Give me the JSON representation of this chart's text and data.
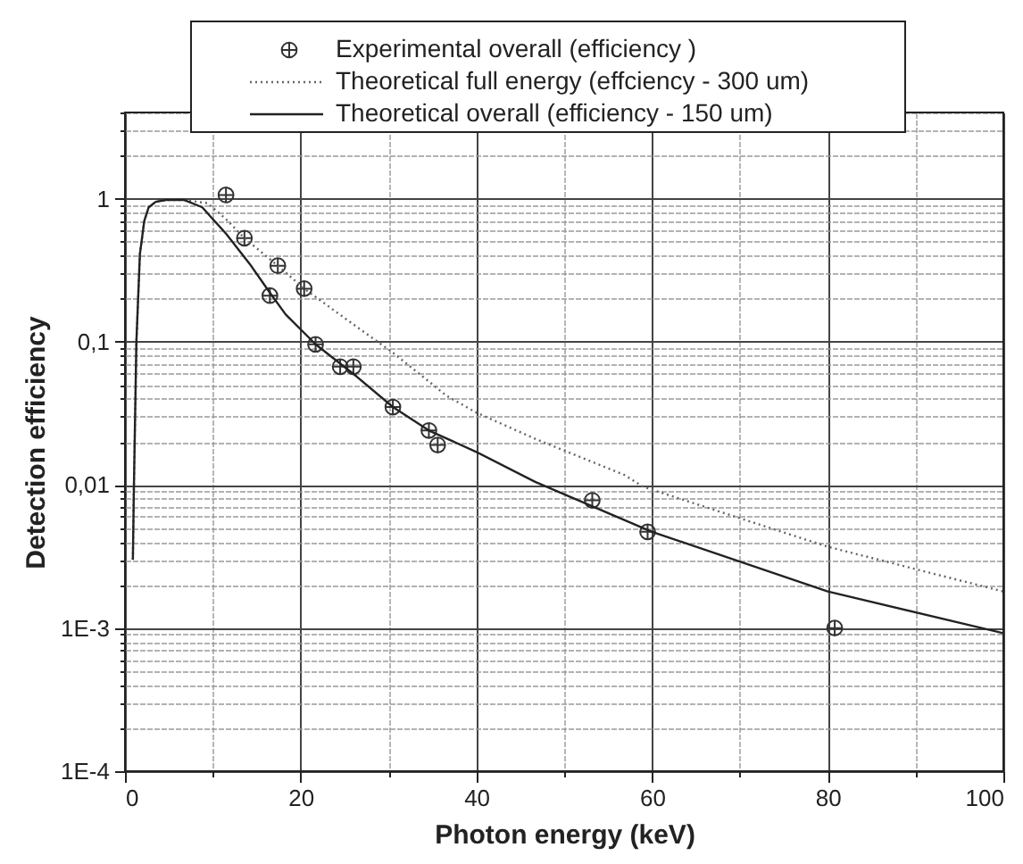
{
  "chart_data": {
    "type": "line",
    "xlabel": "Photon energy (keV)",
    "ylabel": "Detection efficiency",
    "xlim": [
      0,
      100
    ],
    "ylim": [
      0.0001,
      4
    ],
    "log": "y",
    "grid": true,
    "legend": "top",
    "xticks": [
      0,
      {
        "value": 10,
        "label": null
      },
      20,
      {
        "value": 30,
        "label": null
      },
      40,
      {
        "value": 50,
        "label": null
      },
      60,
      {
        "value": 70,
        "label": null
      },
      80,
      {
        "value": 90,
        "label": null
      },
      100
    ],
    "yticks": [
      {
        "value": 0.0001,
        "label": "1E-4"
      },
      {
        "value": 0.0002,
        "label": null
      },
      {
        "value": 0.0003,
        "label": null
      },
      {
        "value": 0.0004,
        "label": null
      },
      {
        "value": 0.0005,
        "label": null
      },
      {
        "value": 0.0006,
        "label": null
      },
      {
        "value": 0.0007,
        "label": null
      },
      {
        "value": 0.0008,
        "label": null
      },
      {
        "value": 0.0009,
        "label": null
      },
      {
        "value": 0.001,
        "label": "1E-3"
      },
      {
        "value": 0.002,
        "label": null
      },
      {
        "value": 0.003,
        "label": null
      },
      {
        "value": 0.004,
        "label": null
      },
      {
        "value": 0.005,
        "label": null
      },
      {
        "value": 0.006,
        "label": null
      },
      {
        "value": 0.007,
        "label": null
      },
      {
        "value": 0.008,
        "label": null
      },
      {
        "value": 0.009,
        "label": null
      },
      {
        "value": 0.01,
        "label": "0,01"
      },
      {
        "value": 0.02,
        "label": null
      },
      {
        "value": 0.03,
        "label": null
      },
      {
        "value": 0.04,
        "label": null
      },
      {
        "value": 0.05,
        "label": null
      },
      {
        "value": 0.06,
        "label": null
      },
      {
        "value": 0.07,
        "label": null
      },
      {
        "value": 0.08,
        "label": null
      },
      {
        "value": 0.09,
        "label": null
      },
      {
        "value": 0.1,
        "label": "0,1"
      },
      {
        "value": 0.2,
        "label": null
      },
      {
        "value": 0.3,
        "label": null
      },
      {
        "value": 0.4,
        "label": null
      },
      {
        "value": 0.5,
        "label": null
      },
      {
        "value": 0.6,
        "label": null
      },
      {
        "value": 0.7,
        "label": null
      },
      {
        "value": 0.8,
        "label": null
      },
      {
        "value": 0.9,
        "label": null
      },
      {
        "value": 1,
        "label": "1"
      },
      {
        "value": 2,
        "label": null
      },
      {
        "value": 3,
        "label": null
      },
      {
        "value": 4,
        "label": null
      }
    ],
    "series": [
      {
        "name": "Experimental overall  (efficiency )",
        "type": "scatter",
        "marker": "cross",
        "color": "#333333",
        "x": [
          11.5,
          13.6,
          17.4,
          16.5,
          20.4,
          21.7,
          24.5,
          26.0,
          30.5,
          34.6,
          35.6,
          53.2,
          59.5,
          80.8
        ],
        "values": [
          1.06,
          0.53,
          0.34,
          0.21,
          0.235,
          0.096,
          0.067,
          0.067,
          0.035,
          0.024,
          0.019,
          0.0078,
          0.0047,
          0.001
        ]
      },
      {
        "name": "Theoretical full energy  (effciency - 300 um)",
        "type": "line",
        "line_style": "dotted",
        "color": "#666666",
        "x": [
          0.9,
          1.0,
          1.3,
          1.7,
          2.2,
          2.7,
          3.5,
          4.7,
          6.7,
          9.4,
          11.5,
          13.6,
          17.4,
          20.4,
          26.4,
          30.5,
          36.6,
          40,
          46.7,
          56.9,
          59,
          80,
          100
        ],
        "values": [
          0.003,
          0.0084,
          0.1,
          0.41,
          0.7,
          0.87,
          0.95,
          0.98,
          0.98,
          0.93,
          0.72,
          0.53,
          0.34,
          0.235,
          0.127,
          0.084,
          0.042,
          0.032,
          0.021,
          0.0117,
          0.0097,
          0.0037,
          0.0018
        ]
      },
      {
        "name": "Theoretical overall  (efficiency - 150 um)",
        "type": "line",
        "line_style": "solid",
        "color": "#222222",
        "x": [
          0.9,
          1.0,
          1.3,
          1.7,
          2.2,
          2.7,
          3.5,
          4.7,
          6.7,
          8.8,
          10,
          11.5,
          14.2,
          16.5,
          18.3,
          21.7,
          26.4,
          30.5,
          34.6,
          40,
          46.7,
          60,
          80,
          100
        ],
        "values": [
          0.003,
          0.0084,
          0.1,
          0.41,
          0.7,
          0.87,
          0.95,
          0.98,
          0.98,
          0.87,
          0.72,
          0.57,
          0.35,
          0.22,
          0.155,
          0.096,
          0.057,
          0.035,
          0.024,
          0.017,
          0.0105,
          0.0047,
          0.0018,
          0.00092
        ]
      }
    ]
  }
}
